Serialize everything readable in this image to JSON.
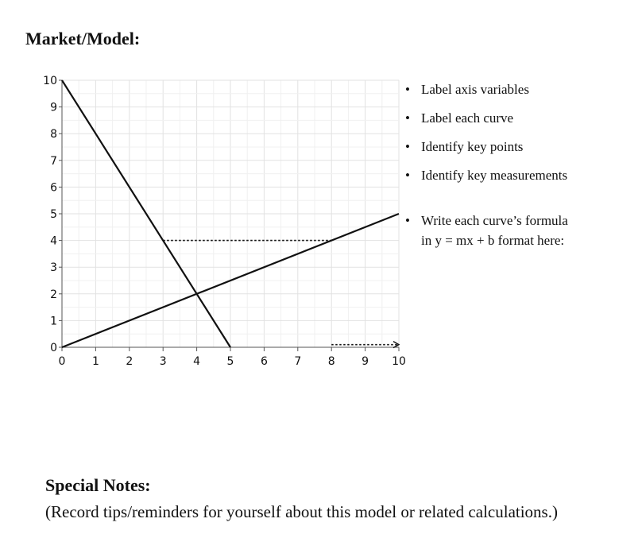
{
  "page": {
    "title": "Market/Model:",
    "notes": [
      "Label axis variables",
      "Label each curve",
      "Identify key points",
      "Identify key measurements"
    ],
    "formula_note_line1": "Write each curve’s formula",
    "formula_note_line2": "in y = mx + b format here:",
    "special_notes_title": "Special Notes:",
    "special_notes_body": "(Record tips/reminders for yourself about this model or related calculations.)"
  },
  "chart_data": {
    "type": "line",
    "xlim": [
      0,
      10
    ],
    "ylim": [
      0,
      10
    ],
    "x_ticks": [
      0,
      1,
      2,
      3,
      4,
      5,
      6,
      7,
      8,
      9,
      10
    ],
    "y_ticks": [
      0,
      1,
      2,
      3,
      4,
      5,
      6,
      7,
      8,
      9,
      10
    ],
    "grid": true,
    "series": [
      {
        "x": [
          0,
          5
        ],
        "y": [
          10,
          0
        ]
      },
      {
        "x": [
          0,
          10
        ],
        "y": [
          0,
          5
        ]
      }
    ],
    "annotations": [
      {
        "style": "dotted",
        "x": [
          3,
          8
        ],
        "y": [
          4,
          4
        ]
      },
      {
        "style": "dotted-arrow",
        "x": [
          8,
          10
        ],
        "y": [
          0.1,
          0.1
        ]
      }
    ]
  }
}
